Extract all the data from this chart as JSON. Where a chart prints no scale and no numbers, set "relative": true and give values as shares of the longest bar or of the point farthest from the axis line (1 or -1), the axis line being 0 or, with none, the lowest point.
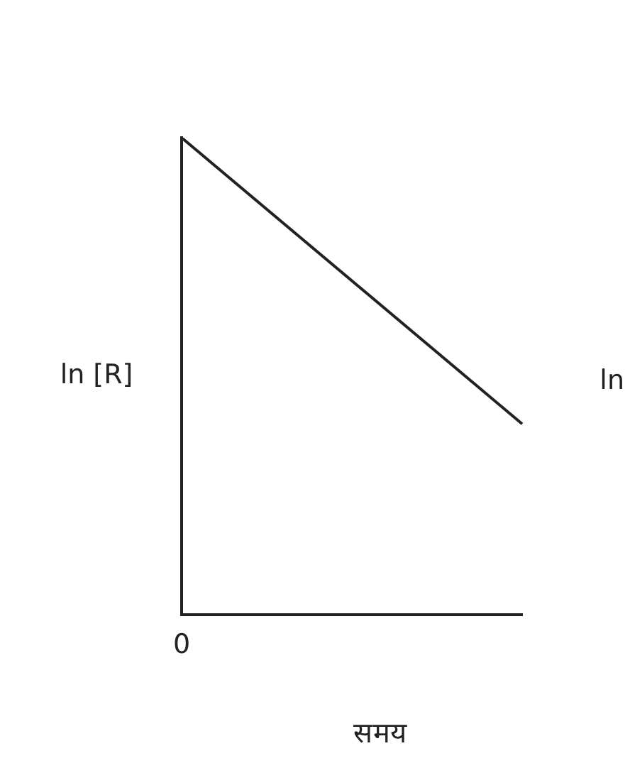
{
  "chart_data": {
    "type": "line",
    "relative": true,
    "xlabel": "समय",
    "ylabel": "ln [R]",
    "annotations": [
      "0",
      "ln"
    ],
    "categories": [
      null,
      null
    ],
    "series": [
      {
        "color": "#222222",
        "values": [
          1,
          0.4
        ]
      }
    ],
    "grid": false,
    "legend": false,
    "marker": "none",
    "line_style": "solid"
  }
}
